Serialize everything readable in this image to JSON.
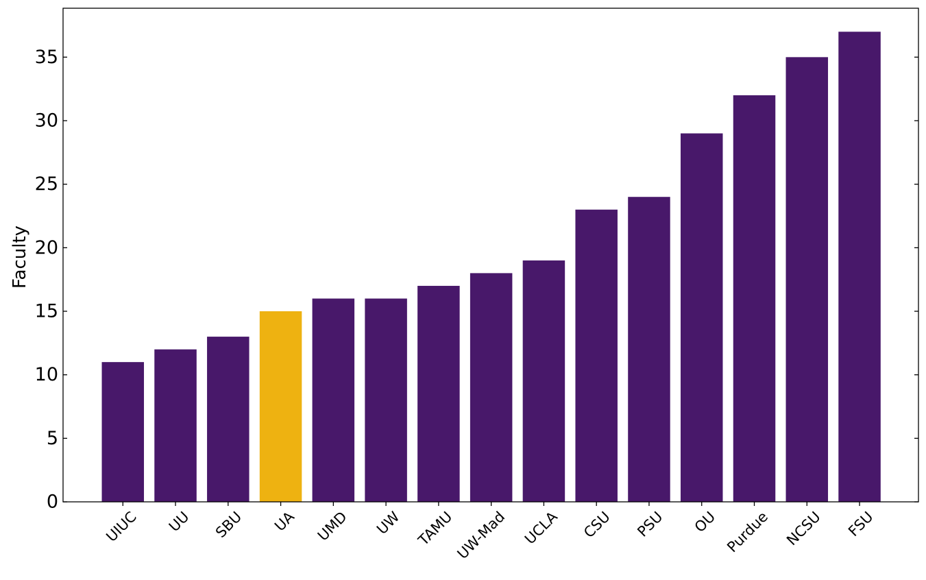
{
  "chart_data": {
    "type": "bar",
    "title": "",
    "xlabel": "",
    "ylabel": "Faculty",
    "ylim": [
      0,
      38.85
    ],
    "yticks": [
      0,
      5,
      10,
      15,
      20,
      25,
      30,
      35
    ],
    "grid": false,
    "legend": "none",
    "categories": [
      "UIUC",
      "UU",
      "SBU",
      "UA",
      "UMD",
      "UW",
      "TAMU",
      "UW-Mad",
      "UCLA",
      "CSU",
      "PSU",
      "OU",
      "Purdue",
      "NCSU",
      "FSU"
    ],
    "values": [
      11,
      12,
      13,
      15,
      16,
      16,
      17,
      18,
      19,
      23,
      24,
      29,
      32,
      35,
      37
    ],
    "highlight_category": "UA",
    "colors": {
      "bar": "#48186a",
      "highlight": "#eeb211",
      "axis": "#000000"
    }
  }
}
